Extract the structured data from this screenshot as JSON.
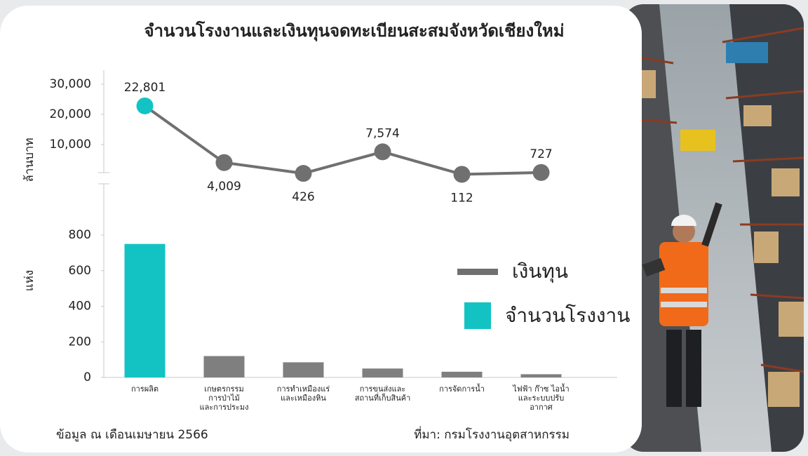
{
  "chart_data": [
    {
      "type": "line",
      "title": "จำนวนโรงงานและเงินทุนจดทะเบียนสะสมจังหวัดเชียงใหม่",
      "y_label": "ล้านบาท",
      "ylim": [
        0,
        30000
      ],
      "yticks": [
        {
          "value": 10000,
          "label": "10,000"
        },
        {
          "value": 20000,
          "label": "20,000"
        },
        {
          "value": 30000,
          "label": "30,000"
        }
      ],
      "series": [
        {
          "name": "เงินทุน",
          "color": "#707070",
          "values": [
            22801,
            4009,
            426,
            7574,
            112,
            727
          ],
          "value_labels": [
            "22,801",
            "4,009",
            "426",
            "7,574",
            "112",
            "727"
          ],
          "point_colors": [
            "#13c3c3",
            "#707070",
            "#707070",
            "#707070",
            "#707070",
            "#707070"
          ]
        }
      ]
    },
    {
      "type": "bar",
      "y_label": "แห่ง",
      "ylim": [
        0,
        800
      ],
      "yticks": [
        0,
        200,
        400,
        600,
        800
      ],
      "categories": [
        "การผลิต",
        "เกษตรกรรม\nการป่าไม้\nและการประมง",
        "การทำเหมืองแร่\nและเหมืองหิน",
        "การขนส่งและ\nสถานที่เก็บสินค้า",
        "การจัดการน้ำ",
        "ไฟฟ้า ก๊าซ ไอน้ำ\nและระบบปรับ\nอากาศ"
      ],
      "series": [
        {
          "name": "จำนวนโรงงาน",
          "color": "#13c3c3",
          "values": [
            750,
            120,
            85,
            50,
            32,
            18
          ],
          "bar_colors": [
            "#13c3c3",
            "#7f7f7f",
            "#7f7f7f",
            "#7f7f7f",
            "#7f7f7f",
            "#7f7f7f"
          ]
        }
      ]
    }
  ],
  "footer": {
    "note": "ข้อมูล ณ เดือนเมษายน 2566",
    "source": "ที่มา: กรมโรงงานอุตสาหกรรม"
  }
}
